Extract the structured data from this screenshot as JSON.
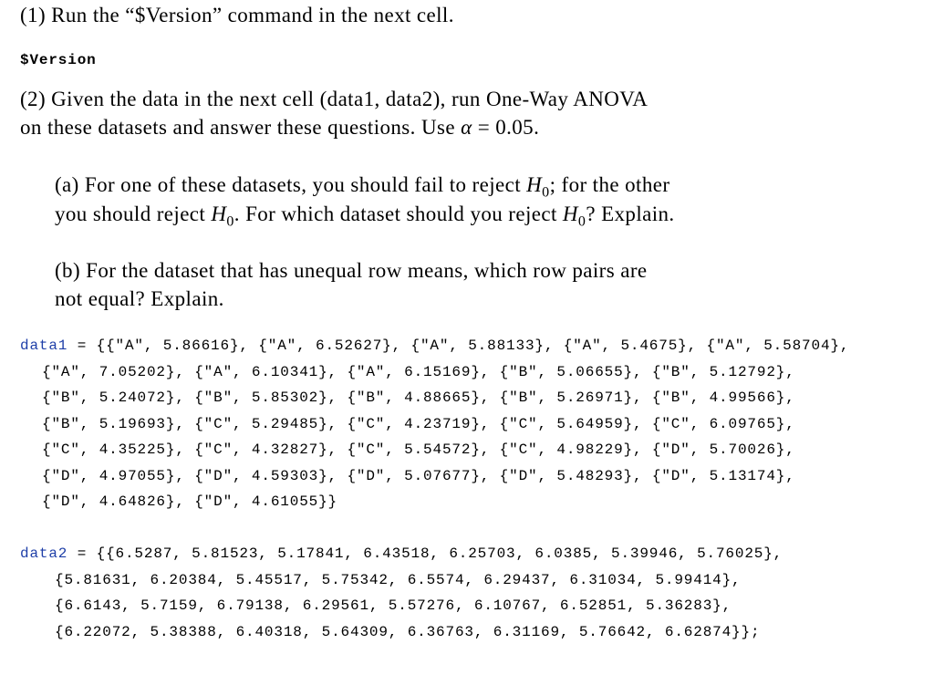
{
  "q1": {
    "text": "(1) Run the “$Version” command in the next cell."
  },
  "input1": {
    "code": "$Version"
  },
  "q2": {
    "line1": "(2) Given the data in the next cell (data1, data2), run One-Way ANOVA",
    "line2_pre": "on these datasets and answer these questions. Use ",
    "alpha": "α",
    "line2_post": " = 0.05."
  },
  "qa": {
    "l1_a": "(a) For one of these datasets, you should fail to reject ",
    "l1_b": "; for the other",
    "l2_a": "you should reject ",
    "l2_b": ". For which dataset should you reject ",
    "l2_c": "? Explain.",
    "H": "H",
    "sub": "0"
  },
  "qb": {
    "line1": "(b) For the dataset that has unequal row means, which row pairs are",
    "line2": "not equal? Explain."
  },
  "data1": {
    "name": "data1",
    "lines": [
      " = {{\"A\", 5.86616}, {\"A\", 6.52627}, {\"A\", 5.88133}, {\"A\", 5.4675}, {\"A\", 5.58704},",
      "{\"A\", 7.05202}, {\"A\", 6.10341}, {\"A\", 6.15169}, {\"B\", 5.06655}, {\"B\", 5.12792},",
      "{\"B\", 5.24072}, {\"B\", 5.85302}, {\"B\", 4.88665}, {\"B\", 5.26971}, {\"B\", 4.99566},",
      "{\"B\", 5.19693}, {\"C\", 5.29485}, {\"C\", 4.23719}, {\"C\", 5.64959}, {\"C\", 6.09765},",
      "{\"C\", 4.35225}, {\"C\", 4.32827}, {\"C\", 5.54572}, {\"C\", 4.98229}, {\"D\", 5.70026},",
      "{\"D\", 4.97055}, {\"D\", 4.59303}, {\"D\", 5.07677}, {\"D\", 5.48293}, {\"D\", 5.13174},",
      "{\"D\", 4.64826}, {\"D\", 4.61055}}"
    ]
  },
  "data2": {
    "name": "data2",
    "lines": [
      " = {{6.5287, 5.81523, 5.17841, 6.43518, 6.25703, 6.0385, 5.39946, 5.76025},",
      "{5.81631, 6.20384, 5.45517, 5.75342, 6.5574, 6.29437, 6.31034, 5.99414},",
      "{6.6143, 5.7159, 6.79138, 6.29561, 5.57276, 6.10767, 6.52851, 5.36283},",
      "{6.22072, 5.38388, 6.40318, 5.64309, 6.36763, 6.31169, 5.76642, 6.62874}};"
    ]
  },
  "colors": {
    "variable": "#1f3fa8"
  }
}
